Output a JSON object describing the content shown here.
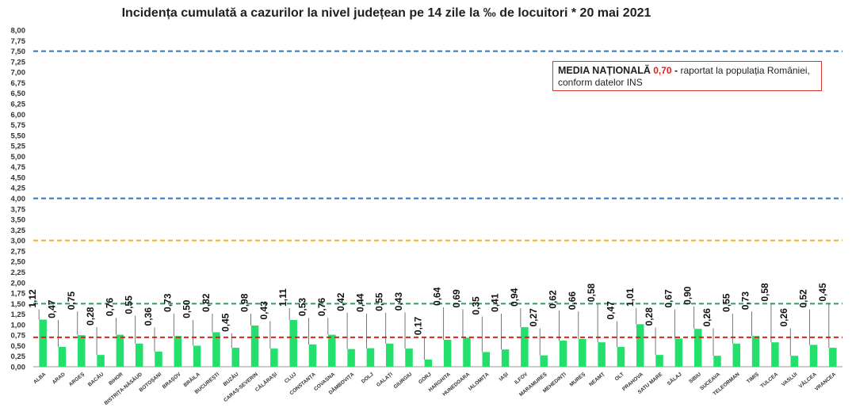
{
  "chart_data": {
    "type": "bar",
    "title": "Incidența cumulată a cazurilor la nivel județean pe 14 zile la ‰ de locuitori *  20 mai 2021",
    "xlabel": "",
    "ylabel": "",
    "ylim": [
      0,
      8
    ],
    "ytick_step": 0.25,
    "grid": false,
    "legend": "none",
    "categories": [
      "ALBA",
      "ARAD",
      "ARGEȘ",
      "BACĂU",
      "BIHOR",
      "BISTRIȚA-NĂSĂUD",
      "BOTOȘANI",
      "BRAȘOV",
      "BRĂILA",
      "BUCUREȘTI",
      "BUZĂU",
      "CARAȘ-SEVERIN",
      "CĂLĂRAȘI",
      "CLUJ",
      "CONSTANȚA",
      "COVASNA",
      "DÂMBOVIȚA",
      "DOLJ",
      "GALAȚI",
      "GIURGIU",
      "GORJ",
      "HARGHITA",
      "HUNEDOARA",
      "IALOMIȚA",
      "IAȘI",
      "ILFOV",
      "MARAMUREȘ",
      "MEHEDINȚI",
      "MUREȘ",
      "NEAMȚ",
      "OLT",
      "PRAHOVA",
      "SATU MARE",
      "SĂLAJ",
      "SIBIU",
      "SUCEAVA",
      "TELEORMAN",
      "TIMIȘ",
      "TULCEA",
      "VASLUI",
      "VÂLCEA",
      "VRANCEA"
    ],
    "values": [
      1.12,
      0.47,
      0.75,
      0.28,
      0.76,
      0.55,
      0.36,
      0.73,
      0.5,
      0.82,
      0.45,
      0.98,
      0.43,
      1.11,
      0.53,
      0.76,
      0.42,
      0.44,
      0.55,
      0.43,
      0.17,
      0.64,
      0.69,
      0.35,
      0.41,
      0.94,
      0.27,
      0.62,
      0.66,
      0.58,
      0.47,
      1.01,
      0.28,
      0.67,
      0.9,
      0.26,
      0.55,
      0.73,
      0.58,
      0.26,
      0.52,
      0.45
    ],
    "value_labels": [
      "1,12",
      "0,47",
      "0,75",
      "0,28",
      "0,76",
      "0,55",
      "0,36",
      "0,73",
      "0,50",
      "0,82",
      "0,45",
      "0,98",
      "0,43",
      "1,11",
      "0,53",
      "0,76",
      "0,42",
      "0,44",
      "0,55",
      "0,43",
      "0,17",
      "0,64",
      "0,69",
      "0,35",
      "0,41",
      "0,94",
      "0,27",
      "0,62",
      "0,66",
      "0,58",
      "0,47",
      "1,01",
      "0,28",
      "0,67",
      "0,90",
      "0,26",
      "0,55",
      "0,73",
      "0,58",
      "0,26",
      "0,52",
      "0,45"
    ],
    "label_heights": [
      1.4,
      1.15,
      1.35,
      0.98,
      1.2,
      1.25,
      0.97,
      1.3,
      1.15,
      1.3,
      0.83,
      1.3,
      1.12,
      1.43,
      1.2,
      1.2,
      1.32,
      1.3,
      1.32,
      1.33,
      0.75,
      1.45,
      1.4,
      1.23,
      1.3,
      1.43,
      0.95,
      1.38,
      1.35,
      1.54,
      1.12,
      1.43,
      0.97,
      1.4,
      1.47,
      0.95,
      1.3,
      1.35,
      1.55,
      0.95,
      1.4,
      1.55
    ],
    "reference_lines": [
      {
        "value": 7.5,
        "color": "#2e75b6"
      },
      {
        "value": 4.0,
        "color": "#2e75b6"
      },
      {
        "value": 3.0,
        "color": "#f0b323"
      },
      {
        "value": 1.5,
        "color": "#2ca05a"
      },
      {
        "value": 0.7,
        "color": "#e3201b"
      }
    ],
    "bar_color": "#22e06b",
    "annotation": {
      "label": "MEDIA NAȚIONALĂ",
      "value": "0,70",
      "dash": "-",
      "text_line1": "raportat la populația României,",
      "text_line2": "conform datelor INS"
    }
  }
}
